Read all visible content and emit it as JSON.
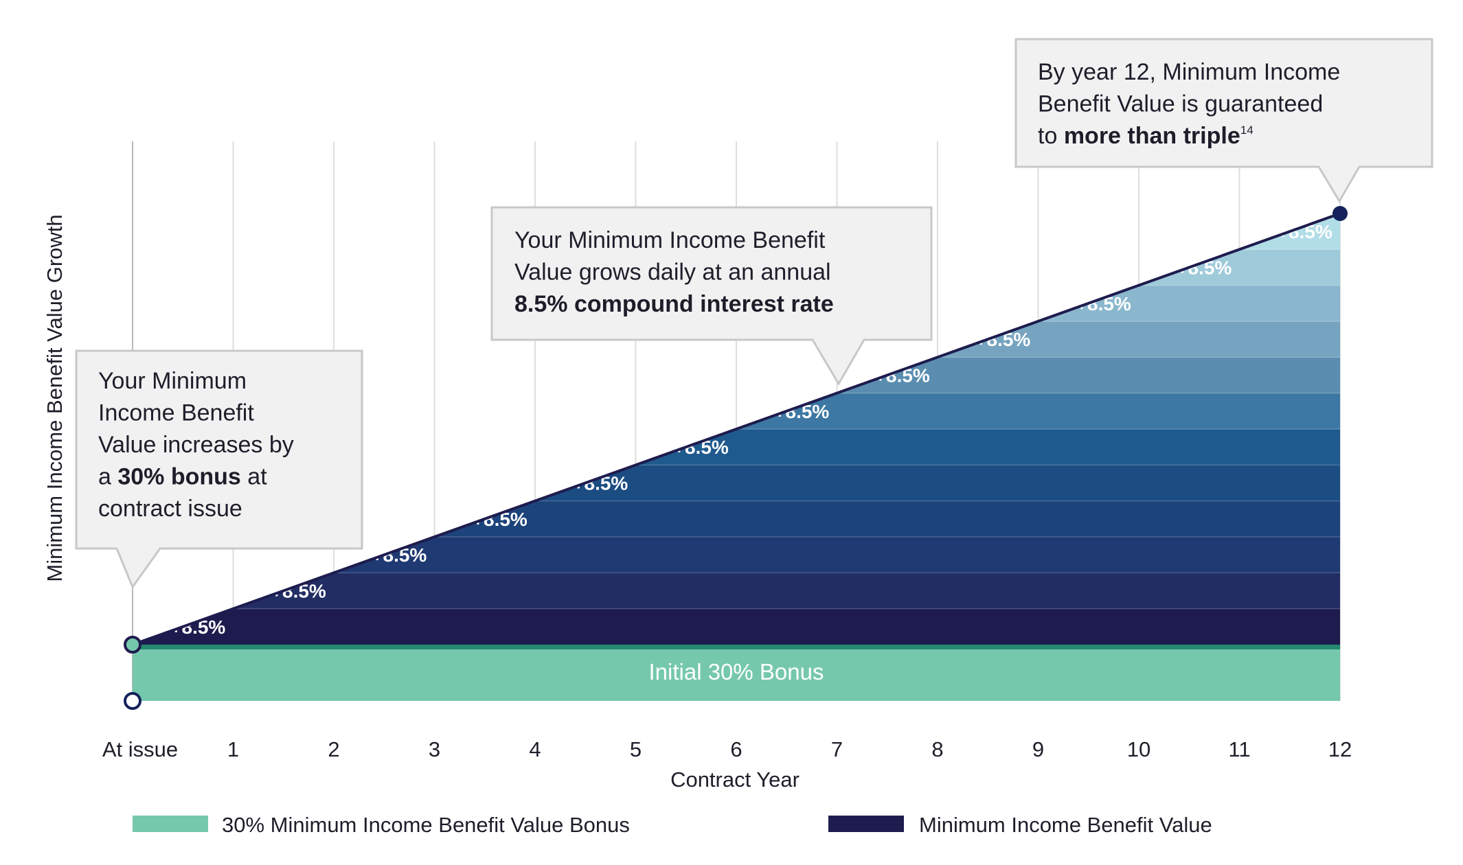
{
  "chart_data": {
    "type": "area",
    "xlabel": "Contract Year",
    "ylabel": "Minimum Income Benefit Value Growth",
    "categories": [
      "At issue",
      "1",
      "2",
      "3",
      "4",
      "5",
      "6",
      "7",
      "8",
      "9",
      "10",
      "11",
      "12"
    ],
    "bonus_label": "Initial 30% Bonus",
    "annual_rate_labels": [
      "+8.5%",
      "+8.5%",
      "+8.5%",
      "+8.5%",
      "+8.5%",
      "+8.5%",
      "+8.5%",
      "+8.5%",
      "+8.5%",
      "+8.5%",
      "+8.5%",
      "+8.5%"
    ],
    "legend": [
      {
        "label": "30% Minimum Income Benefit Value Bonus",
        "color": "#76c8ad"
      },
      {
        "label": "Minimum Income Benefit Value",
        "color": "#1e1c4e"
      }
    ],
    "colors": {
      "bonus": "#76c8ad",
      "bonus_line": "#24896e",
      "growth_line": "#1e1c4e",
      "end_marker": "#14215a",
      "band_colors": [
        "#1e1c4e",
        "#222d64",
        "#1f3a73",
        "#1d437b",
        "#1b4c82",
        "#1f5a8e",
        "#3d77a3",
        "#5a8db0",
        "#76a4c0",
        "#8ab7ce",
        "#9ecada",
        "#b1dde7"
      ]
    },
    "callouts": [
      {
        "lines": [
          [
            {
              "t": "Your Minimum"
            }
          ],
          [
            {
              "t": "Income Benefit"
            }
          ],
          [
            {
              "t": "Value increases by"
            }
          ],
          [
            {
              "t": "a "
            },
            {
              "t": "30% bonus",
              "b": true
            },
            {
              "t": " at"
            }
          ],
          [
            {
              "t": "contract issue"
            }
          ]
        ]
      },
      {
        "lines": [
          [
            {
              "t": "Your Minimum Income Benefit"
            }
          ],
          [
            {
              "t": "Value grows daily at an annual"
            }
          ],
          [
            {
              "t": "8.5% compound interest rate",
              "b": true
            }
          ]
        ]
      },
      {
        "lines": [
          [
            {
              "t": "By year 12, Minimum Income"
            }
          ],
          [
            {
              "t": "Benefit Value is guaranteed"
            }
          ],
          [
            {
              "t": "to "
            },
            {
              "t": "more than triple",
              "b": true
            },
            {
              "t": "14",
              "sup": true
            }
          ]
        ]
      }
    ]
  }
}
